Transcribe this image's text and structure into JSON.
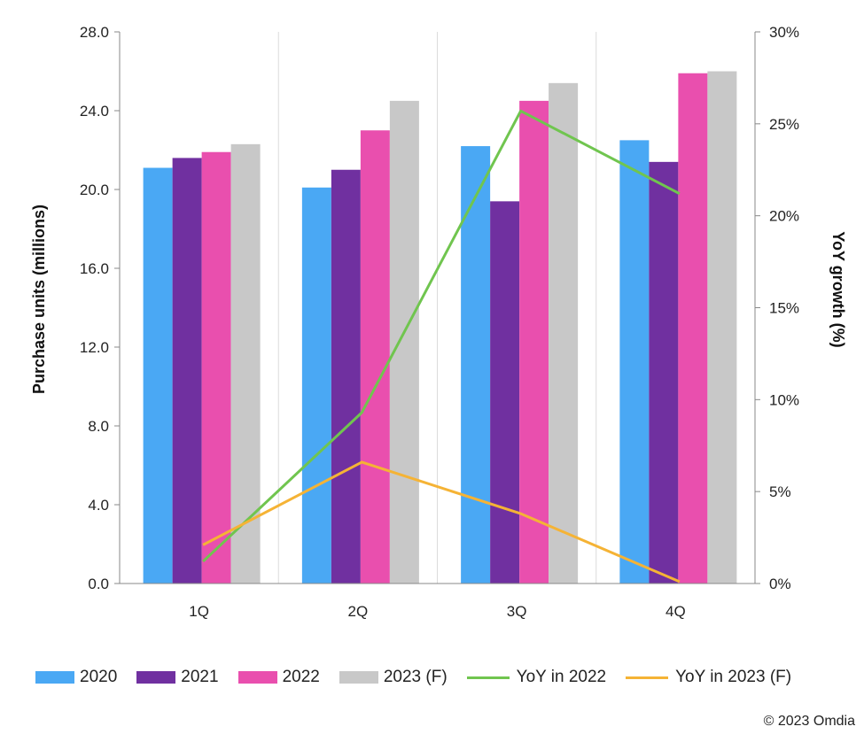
{
  "chart_data": {
    "type": "bar",
    "categories": [
      "1Q",
      "2Q",
      "3Q",
      "4Q"
    ],
    "series": [
      {
        "name": "2020",
        "color": "#4aa8f4",
        "values": [
          21.1,
          20.1,
          22.2,
          22.5
        ]
      },
      {
        "name": "2021",
        "color": "#7030a0",
        "values": [
          21.6,
          21.0,
          19.4,
          21.4
        ]
      },
      {
        "name": "2022",
        "color": "#e94fae",
        "values": [
          21.9,
          23.0,
          24.5,
          25.9
        ]
      },
      {
        "name": "2023 (F)",
        "color": "#c8c8c8",
        "values": [
          22.3,
          24.5,
          25.4,
          26.0
        ]
      }
    ],
    "line_series": [
      {
        "name": "YoY in 2022",
        "color": "#70c54f",
        "values": [
          1.2,
          9.3,
          25.7,
          21.2
        ]
      },
      {
        "name": "YoY in 2023 (F)",
        "color": "#f5b335",
        "values": [
          2.1,
          6.6,
          3.8,
          0.1
        ]
      }
    ],
    "ylabel": "Purchase units (millions)",
    "ylim": [
      0,
      28
    ],
    "yticks": [
      "0.0",
      "4.0",
      "8.0",
      "12.0",
      "16.0",
      "20.0",
      "24.0",
      "28.0"
    ],
    "y2label": "YoY growth (%)",
    "y2lim": [
      0,
      30
    ],
    "y2ticks": [
      "0%",
      "5%",
      "10%",
      "15%",
      "20%",
      "25%",
      "30%"
    ],
    "grid": "vertical-only",
    "legend_position": "bottom"
  },
  "copyright": "© 2023 Omdia"
}
